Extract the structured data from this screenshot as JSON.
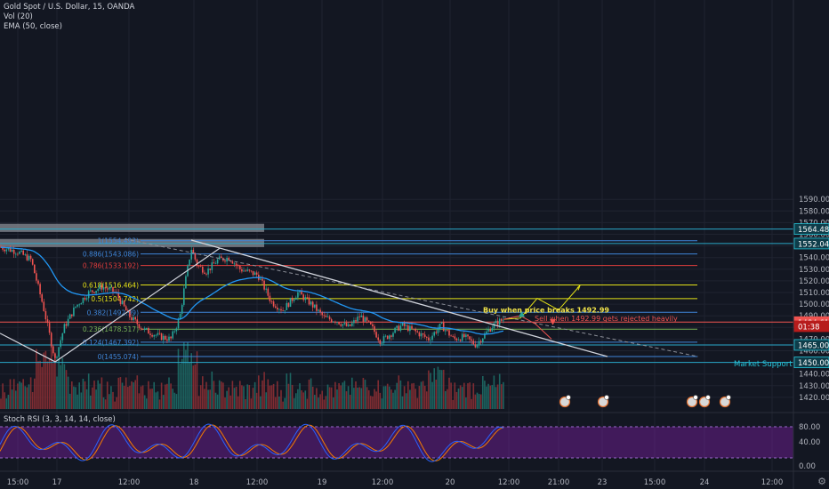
{
  "header": {
    "symbol": "Gold Spot / U.S. Dollar, 15, OANDA",
    "volume": "Vol (20)",
    "ema": "EMA (50, close)"
  },
  "rsi": {
    "label": "Stoch RSI (3, 3, 14, 14, close)",
    "ticks": [
      "80.00",
      "40.00",
      "0.00"
    ]
  },
  "colors": {
    "background": "#131722",
    "grid": "#1f2330",
    "up": "#26a69a",
    "down": "#ef5350",
    "ema": "#2196f3",
    "trend": "#d1d4dc",
    "rsi_band": "#7b1fa2",
    "rsi_k": "#2962ff",
    "rsi_d": "#f57c00",
    "fib_yellow": "#e4e117",
    "fib_blue": "#3f86d9",
    "fib_red": "#e23d3d",
    "fib_green": "#77b255",
    "cyan": "#26c6da"
  },
  "chart_data": {
    "type": "candlestick",
    "instrument": "Gold Spot / U.S. Dollar",
    "interval": "15",
    "source": "OANDA",
    "ylim": [
      1410,
      1600
    ],
    "y_ticks": [
      1590,
      1580,
      1570,
      1560,
      1550,
      1540,
      1530,
      1520,
      1510,
      1500,
      1490,
      1480,
      1470,
      1460,
      1440,
      1430,
      1420
    ],
    "x_labels": [
      "15:00",
      "17",
      "12:00",
      "18",
      "12:00",
      "19",
      "12:00",
      "20",
      "12:00",
      "21:00",
      "23",
      "15:00",
      "24",
      "12:00"
    ],
    "price_labels": [
      {
        "value": "1564.489",
        "price": 1564.489,
        "style": "cyan"
      },
      {
        "value": "1552.046",
        "price": 1552.046,
        "style": "cyan"
      },
      {
        "value": "1484.618",
        "price": 1484.618,
        "style": "red"
      },
      {
        "value": "01:38",
        "price": 1481,
        "style": "red-countdown"
      },
      {
        "value": "1465.000",
        "price": 1465.0,
        "style": "cyan"
      },
      {
        "value": "1450.000",
        "price": 1450.0,
        "style": "cyan"
      }
    ],
    "fib_levels": [
      {
        "label": "1(1554.493)",
        "ratio": 1,
        "price": 1554.493,
        "color": "blue"
      },
      {
        "label": "0.886(1543.086)",
        "ratio": 0.886,
        "price": 1543.086,
        "color": "blue"
      },
      {
        "label": "0.786(1533.192)",
        "ratio": 0.786,
        "price": 1533.192,
        "color": "red"
      },
      {
        "label": "0.618(1516.464)",
        "ratio": 0.618,
        "price": 1516.464,
        "color": "yellow"
      },
      {
        "label": "0.5(1504.742)",
        "ratio": 0.5,
        "price": 1504.742,
        "color": "yellow"
      },
      {
        "label": "0.382(1492.99)",
        "ratio": 0.382,
        "price": 1492.99,
        "color": "blue"
      },
      {
        "label": "0.236(1478.517)",
        "ratio": 0.236,
        "price": 1478.517,
        "color": "green"
      },
      {
        "label": "0.124(1467.392)",
        "ratio": 0.124,
        "price": 1467.392,
        "color": "blue"
      },
      {
        "label": "0(1455.074)",
        "ratio": 0,
        "price": 1455.074,
        "color": "blue"
      }
    ],
    "zones": [
      {
        "price_top": 1569,
        "price_bottom": 1562
      },
      {
        "price_top": 1556,
        "price_bottom": 1549
      }
    ],
    "horizontal_lines": [
      {
        "price": 1564.489
      },
      {
        "price": 1552.046
      },
      {
        "price": 1484.618
      },
      {
        "price": 1465.0
      },
      {
        "price": 1450.0
      }
    ],
    "annotations": {
      "buy": "Buy when price breaks 1492.99",
      "sell": "Sell when 1492.99 gets rejected heavily",
      "support": "Market Support"
    },
    "key_prices": {
      "start": 1551,
      "low": 1450.5,
      "high": 1555,
      "recent_low": 1462,
      "current": 1484.6
    }
  }
}
